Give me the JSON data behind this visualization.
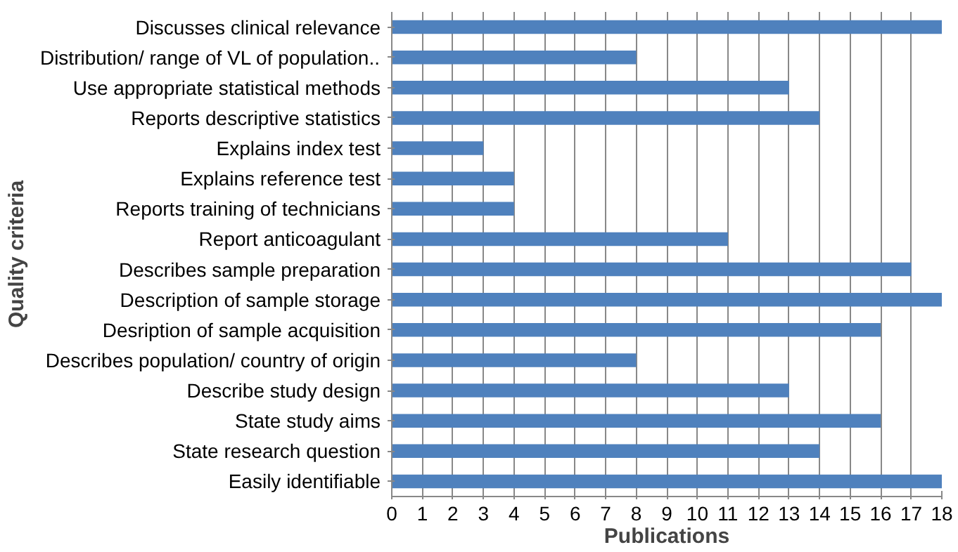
{
  "chart_data": {
    "type": "bar",
    "orientation": "horizontal",
    "xlabel": "Publications",
    "ylabel": "Quality criteria",
    "categories": [
      "Discusses clinical relevance",
      "Distribution/ range of VL of population..",
      "Use appropriate statistical methods",
      "Reports descriptive statistics",
      "Explains index test",
      "Explains reference test",
      "Reports training of technicians",
      "Report anticoagulant",
      "Describes sample preparation",
      "Description of sample storage",
      "Desription of sample acquisition",
      "Describes population/ country of origin",
      "Describe study design",
      "State study aims",
      "State research question",
      "Easily identifiable"
    ],
    "values": [
      18,
      8,
      13,
      14,
      3,
      4,
      4,
      11,
      17,
      18,
      16,
      8,
      13,
      16,
      14,
      18
    ],
    "color": "#4f81bd",
    "xlim": [
      0,
      18
    ],
    "xticks": [
      0,
      1,
      2,
      3,
      4,
      5,
      6,
      7,
      8,
      9,
      10,
      11,
      12,
      13,
      14,
      15,
      16,
      17,
      18
    ],
    "grid": "x"
  }
}
